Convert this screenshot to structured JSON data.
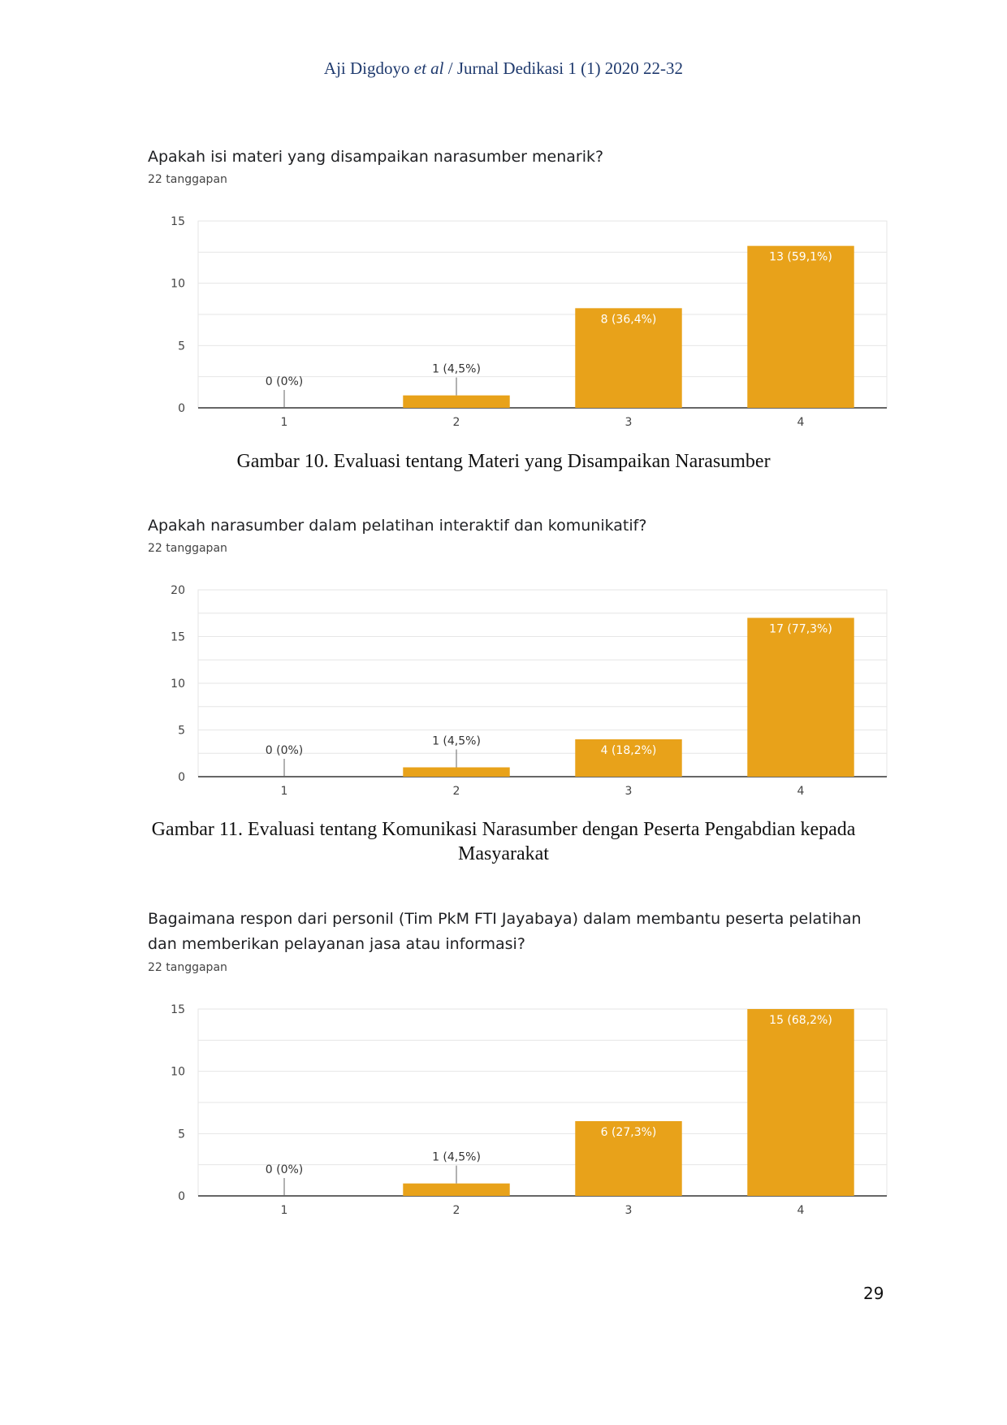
{
  "header": {
    "author": "Aji Digdoyo",
    "etal": "et al",
    "journal": " / Jurnal Dedikasi 1 (1) 2020 22-32"
  },
  "figures": [
    {
      "question": "Apakah isi materi yang disampaikan narasumber menarik?",
      "responses": "22 tanggapan",
      "caption": "Gambar 10. Evaluasi tentang Materi yang Disampaikan Narasumber"
    },
    {
      "question": "Apakah narasumber dalam pelatihan interaktif dan komunikatif?",
      "responses": "22 tanggapan",
      "caption": "Gambar 11. Evaluasi tentang Komunikasi Narasumber dengan Peserta Pengabdian kepada Masyarakat"
    },
    {
      "question": "Bagaimana respon dari personil (Tim PkM FTI Jayabaya) dalam membantu peserta pelatihan dan memberikan pelayanan jasa atau informasi?",
      "responses": "22 tanggapan",
      "caption": ""
    }
  ],
  "page_number": "29",
  "colors": {
    "bar": "#e8a21a",
    "grid": "#e6e6e6",
    "axis": "#333333",
    "label_light": "#ffffff",
    "label_dark": "#333333"
  },
  "chart_data": [
    {
      "type": "bar",
      "categories": [
        "1",
        "2",
        "3",
        "4"
      ],
      "values": [
        0,
        1,
        8,
        13
      ],
      "data_labels": [
        "0 (0%)",
        "1 (4,5%)",
        "8 (36,4%)",
        "13 (59,1%)"
      ],
      "title": "Apakah isi materi yang disampaikan narasumber menarik?",
      "ylim": [
        0,
        15
      ],
      "yticks": [
        0,
        5,
        10,
        15
      ],
      "grid": true
    },
    {
      "type": "bar",
      "categories": [
        "1",
        "2",
        "3",
        "4"
      ],
      "values": [
        0,
        1,
        4,
        17
      ],
      "data_labels": [
        "0 (0%)",
        "1 (4,5%)",
        "4 (18,2%)",
        "17 (77,3%)"
      ],
      "title": "Apakah narasumber dalam pelatihan interaktif dan komunikatif?",
      "ylim": [
        0,
        20
      ],
      "yticks": [
        0,
        5,
        10,
        15,
        20
      ],
      "grid": true
    },
    {
      "type": "bar",
      "categories": [
        "1",
        "2",
        "3",
        "4"
      ],
      "values": [
        0,
        1,
        6,
        15
      ],
      "data_labels": [
        "0 (0%)",
        "1 (4,5%)",
        "6 (27,3%)",
        "15 (68,2%)"
      ],
      "title": "Bagaimana respon dari personil (Tim PkM FTI Jayabaya) dalam membantu peserta pelatihan dan memberikan pelayanan jasa atau informasi?",
      "ylim": [
        0,
        15
      ],
      "yticks": [
        0,
        5,
        10,
        15
      ],
      "grid": true
    }
  ]
}
